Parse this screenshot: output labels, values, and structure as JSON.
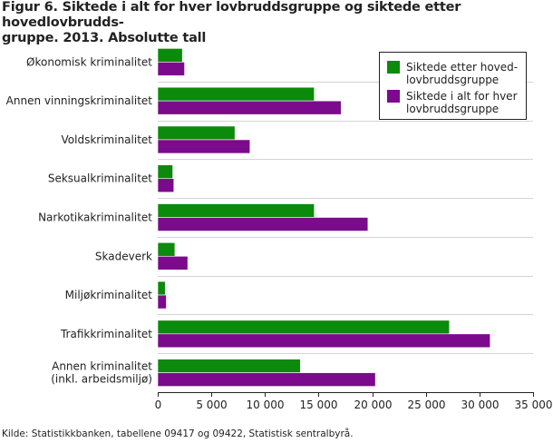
{
  "title_line1": "Figur 6. Siktede i alt for hver lovbruddsgruppe og siktede etter hovedlovbrudds-",
  "title_line2": "gruppe. 2013. Absolutte tall",
  "source": "Kilde: Statistikkbanken, tabellene 09417 og 09422, Statistisk sentralbyrå.",
  "chart_data": {
    "type": "bar",
    "orientation": "horizontal",
    "categories": [
      [
        "Økonomisk kriminalitet"
      ],
      [
        "Annen vinningskriminalitet"
      ],
      [
        "Voldskriminalitet"
      ],
      [
        "Seksualkriminalitet"
      ],
      [
        "Narkotikakriminalitet"
      ],
      [
        "Skadeverk"
      ],
      [
        "Miljøkriminalitet"
      ],
      [
        "Trafikkriminalitet"
      ],
      [
        "Annen kriminalitet",
        "(inkl. arbeidsmiljø)"
      ]
    ],
    "series": [
      {
        "name": [
          "Siktede etter hoved-",
          "lovbruddsgruppe"
        ],
        "color": "#0b8a0b",
        "values": [
          2300,
          14600,
          7200,
          1400,
          14600,
          1600,
          700,
          27200,
          13300
        ]
      },
      {
        "name": [
          "Siktede i alt for hver",
          "lovbruddsgruppe"
        ],
        "color": "#7b0a8c",
        "values": [
          2500,
          17100,
          8600,
          1500,
          19600,
          2800,
          800,
          31000,
          20300
        ]
      }
    ],
    "xlim": [
      0,
      35000
    ],
    "xticks": [
      0,
      5000,
      10000,
      15000,
      20000,
      25000,
      30000,
      35000
    ],
    "xtick_labels": [
      "0",
      "5 000",
      "10 000",
      "15 000",
      "20 000",
      "25 000",
      "30 000",
      "35 000"
    ],
    "grid": "horizontal separators",
    "legend_position": "top-right"
  }
}
